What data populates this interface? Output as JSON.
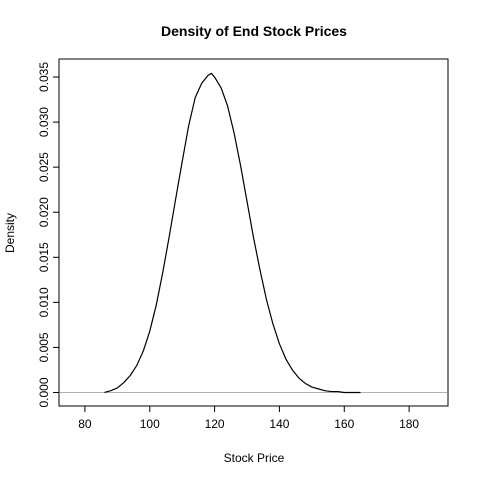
{
  "chart_data": {
    "type": "line",
    "title": "Density of End Stock Prices",
    "xlabel": "Stock Price",
    "ylabel": "Density",
    "xlim": [
      72,
      192
    ],
    "ylim": [
      -0.0015,
      0.037
    ],
    "x_ticks": [
      80,
      100,
      120,
      140,
      160,
      180
    ],
    "x_tick_labels": [
      "80",
      "100",
      "120",
      "140",
      "160",
      "180"
    ],
    "y_ticks": [
      0.0,
      0.005,
      0.01,
      0.015,
      0.02,
      0.025,
      0.03,
      0.035
    ],
    "y_tick_labels": [
      "0.000",
      "0.005",
      "0.010",
      "0.015",
      "0.020",
      "0.025",
      "0.030",
      "0.035"
    ],
    "zero_line": true,
    "grid": false,
    "line_color": "#000000",
    "zero_line_color": "#b0b0b0",
    "series": [
      {
        "x": [
          86,
          88,
          90,
          92,
          94,
          96,
          98,
          100,
          102,
          104,
          106,
          108,
          110,
          112,
          114,
          116,
          118,
          119,
          120,
          122,
          124,
          126,
          128,
          130,
          132,
          134,
          136,
          138,
          140,
          142,
          144,
          146,
          148,
          150,
          152,
          154,
          156,
          158,
          160,
          162,
          164,
          165
        ],
        "y": [
          0.0,
          0.0002,
          0.0005,
          0.0011,
          0.0019,
          0.003,
          0.0046,
          0.0068,
          0.0097,
          0.0133,
          0.0173,
          0.0215,
          0.0256,
          0.0296,
          0.0327,
          0.0343,
          0.0352,
          0.0354,
          0.035,
          0.0338,
          0.0318,
          0.0288,
          0.0252,
          0.0212,
          0.0172,
          0.0136,
          0.0103,
          0.0076,
          0.0054,
          0.0037,
          0.0025,
          0.0016,
          0.001,
          0.0006,
          0.0004,
          0.0002,
          0.0001,
          0.0001,
          0.0,
          0.0,
          0.0,
          0.0
        ]
      }
    ]
  }
}
